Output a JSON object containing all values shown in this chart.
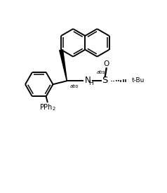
{
  "bg_color": "#ffffff",
  "lw": 1.4,
  "lw_inner": 1.1,
  "r_hex": 20,
  "labels": {
    "abs_ch": "abs",
    "abs_s": "abs",
    "NH": "NH",
    "H": "H",
    "S": "S",
    "O": "O",
    "tBu": "t-Bu",
    "PPh2": "PPh2"
  },
  "font_size": 6.5
}
